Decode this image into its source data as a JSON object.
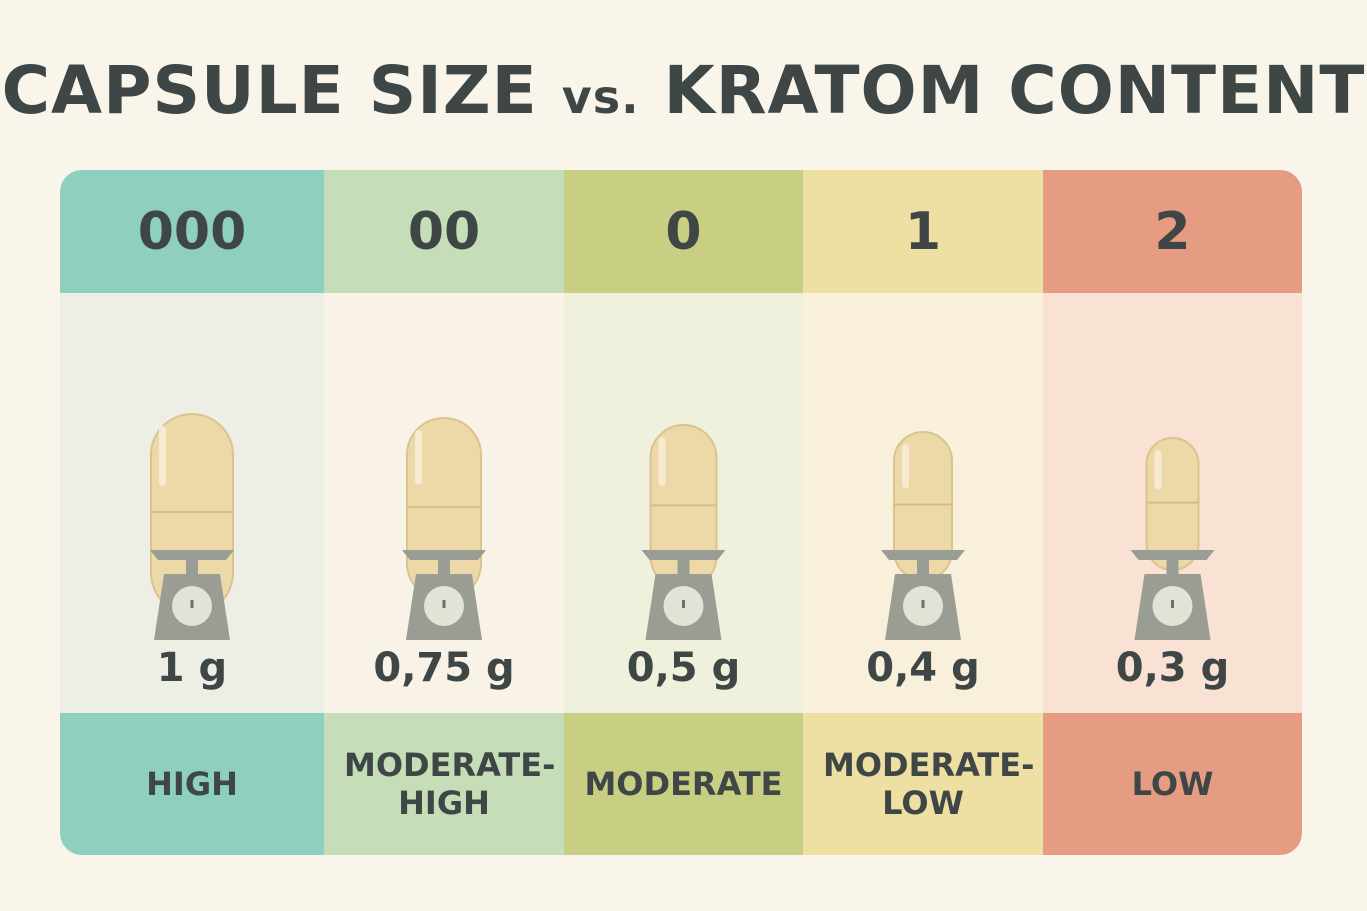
{
  "title": {
    "main": "CAPSULE SIZE",
    "joiner": "vs.",
    "rest": "KRATOM CONTENT"
  },
  "columns": [
    {
      "size": "000",
      "weight": "1 g",
      "level": "HIGH"
    },
    {
      "size": "00",
      "weight": "0,75 g",
      "level": "MODERATE-HIGH"
    },
    {
      "size": "0",
      "weight": "0,5 g",
      "level": "MODERATE"
    },
    {
      "size": "1",
      "weight": "0,4 g",
      "level": "MODERATE-LOW"
    },
    {
      "size": "2",
      "weight": "0,3 g",
      "level": "LOW"
    }
  ]
}
